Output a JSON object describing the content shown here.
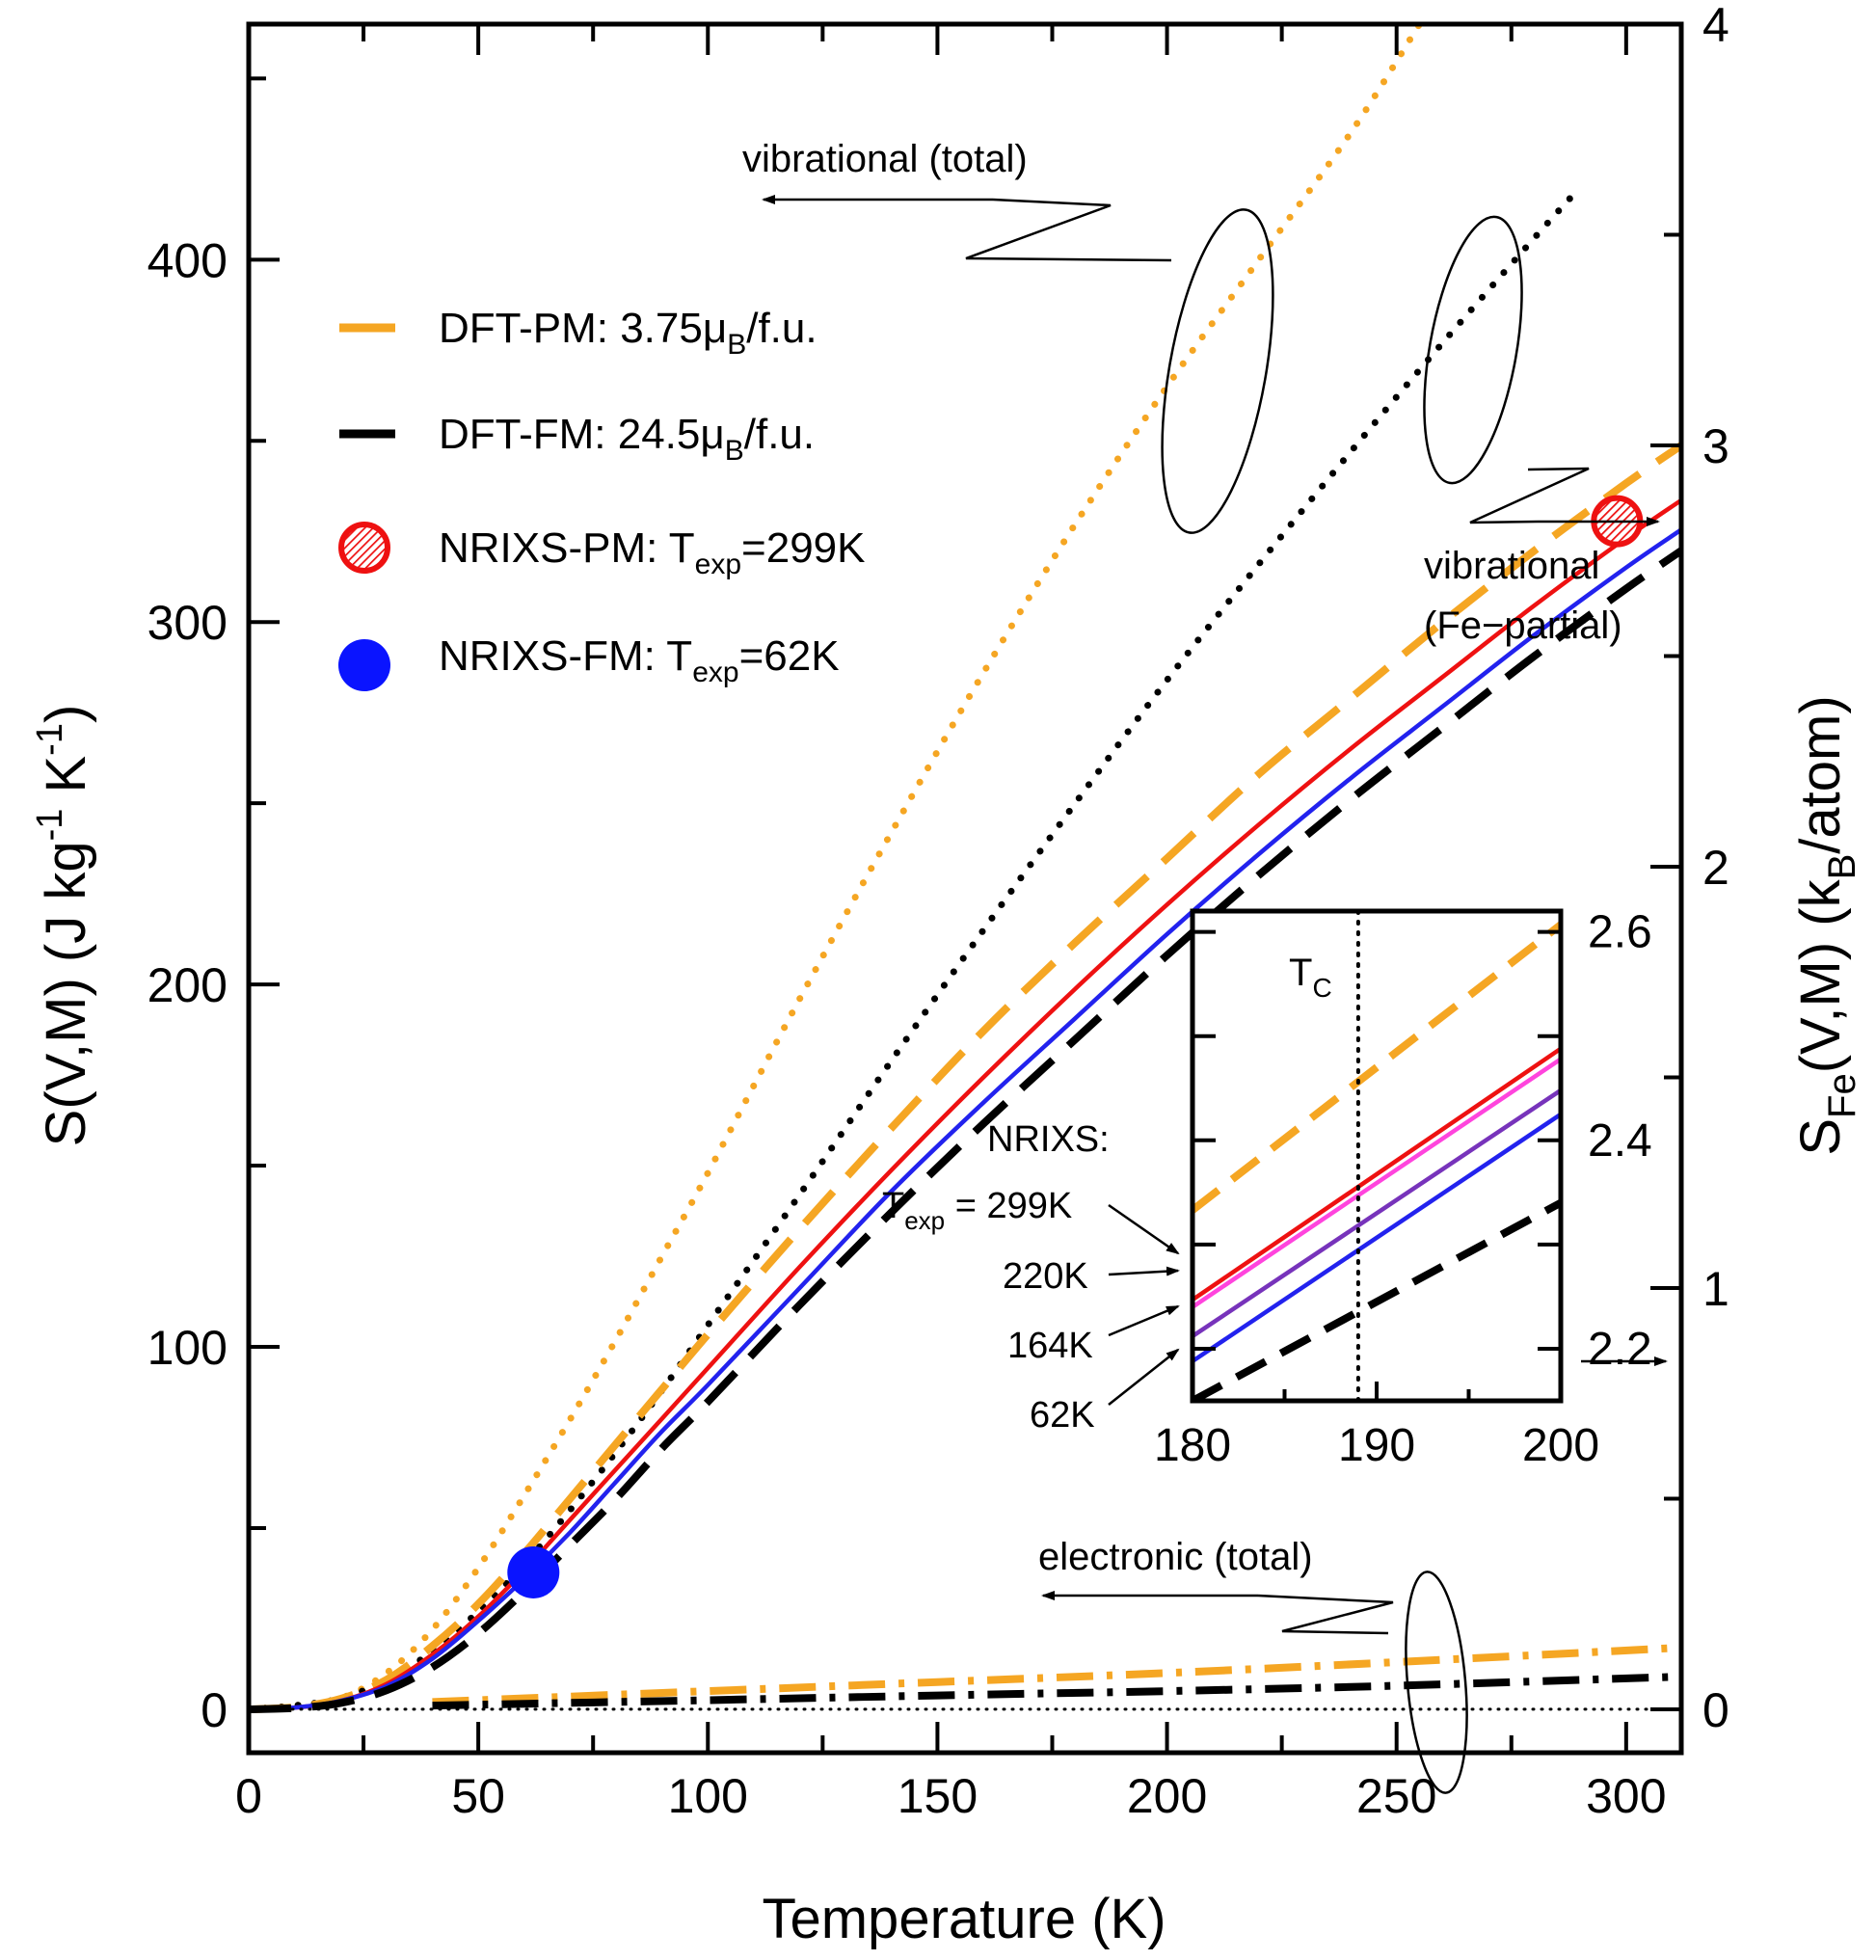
{
  "chart_data": {
    "type": "line",
    "main": {
      "xlabel": "Temperature  (K)",
      "ylabel_left": "S(V,M)  (J kg-1 K-1)",
      "ylabel_right": "S_Fe(V,M)  (k_B/atom)",
      "xlim": [
        0,
        312
      ],
      "ylim_left": [
        -12,
        465
      ],
      "ylim_right": [
        -0.103,
        4.0
      ],
      "x_ticks": [
        "0",
        "50",
        "100",
        "150",
        "200",
        "250",
        "300"
      ],
      "x_tick_values": [
        0,
        50,
        100,
        150,
        200,
        250,
        300
      ],
      "y_left_ticks": [
        "0",
        "100",
        "200",
        "300",
        "400"
      ],
      "y_left_tick_values": [
        0,
        100,
        200,
        300,
        400
      ],
      "y_right_ticks": [
        "0",
        "1",
        "2",
        "3",
        "4"
      ],
      "y_right_tick_values": [
        0,
        1,
        2,
        3,
        4
      ],
      "series": [
        {
          "name": "vibrational total DFT-PM",
          "style": "dotted",
          "color": "#f5a623",
          "axis": "left",
          "x": [
            0,
            10,
            20,
            30,
            40,
            50,
            60,
            70,
            80,
            90,
            100,
            120,
            140,
            160,
            180,
            200,
            220,
            240,
            255
          ],
          "y": [
            0,
            1,
            3,
            10,
            22,
            39,
            59,
            80,
            102,
            125,
            148,
            196,
            242,
            286,
            327,
            365,
            400,
            435,
            465
          ]
        },
        {
          "name": "vibrational total DFT-FM",
          "style": "dotted",
          "color": "#000000",
          "axis": "left",
          "x": [
            0,
            10,
            20,
            30,
            40,
            50,
            60,
            70,
            80,
            90,
            100,
            120,
            140,
            160,
            180,
            200,
            220,
            240,
            260,
            280,
            290
          ],
          "y": [
            0,
            1,
            3,
            8,
            16,
            27,
            40,
            55,
            71,
            88,
            106,
            142,
            179,
            215,
            250,
            284,
            316,
            347,
            377,
            406,
            420
          ]
        },
        {
          "name": "DFT-PM: 3.75μB/f.u.",
          "style": "dashed",
          "color": "#f5a623",
          "axis": "right",
          "x": [
            0,
            10,
            20,
            30,
            40,
            50,
            60,
            70,
            80,
            90,
            100,
            120,
            140,
            160,
            180,
            200,
            220,
            240,
            260,
            280,
            300,
            312
          ],
          "y": [
            0,
            0.005,
            0.025,
            0.07,
            0.15,
            0.25,
            0.37,
            0.5,
            0.63,
            0.76,
            0.89,
            1.14,
            1.38,
            1.61,
            1.82,
            2.02,
            2.22,
            2.4,
            2.58,
            2.75,
            2.91,
            3.0
          ]
        },
        {
          "name": "NRIXS-PM 299K",
          "style": "solid",
          "color": "#ee1111",
          "axis": "right",
          "x": [
            0,
            10,
            20,
            30,
            40,
            50,
            60,
            70,
            80,
            90,
            100,
            120,
            140,
            160,
            180,
            200,
            220,
            240,
            260,
            280,
            300,
            312
          ],
          "y": [
            0,
            0.004,
            0.02,
            0.06,
            0.13,
            0.22,
            0.33,
            0.45,
            0.57,
            0.69,
            0.81,
            1.05,
            1.28,
            1.5,
            1.71,
            1.91,
            2.1,
            2.28,
            2.45,
            2.62,
            2.78,
            2.87
          ]
        },
        {
          "name": "NRIXS-FM 62K",
          "style": "solid",
          "color": "#2222ee",
          "axis": "right",
          "x": [
            0,
            10,
            20,
            30,
            40,
            50,
            60,
            70,
            80,
            90,
            100,
            120,
            140,
            160,
            180,
            200,
            220,
            240,
            260,
            280,
            300,
            312
          ],
          "y": [
            0,
            0.004,
            0.02,
            0.055,
            0.12,
            0.21,
            0.31,
            0.42,
            0.54,
            0.66,
            0.77,
            1.0,
            1.23,
            1.44,
            1.64,
            1.84,
            2.03,
            2.21,
            2.38,
            2.55,
            2.71,
            2.8
          ]
        },
        {
          "name": "DFT-FM: 24.5μB/f.u.",
          "style": "dashed",
          "color": "#000000",
          "axis": "right",
          "x": [
            0,
            10,
            20,
            30,
            40,
            50,
            60,
            70,
            80,
            90,
            100,
            120,
            140,
            160,
            180,
            200,
            220,
            240,
            260,
            280,
            300,
            312
          ],
          "y": [
            0,
            0.003,
            0.015,
            0.045,
            0.1,
            0.18,
            0.28,
            0.39,
            0.5,
            0.62,
            0.73,
            0.96,
            1.18,
            1.39,
            1.59,
            1.79,
            1.98,
            2.16,
            2.33,
            2.5,
            2.66,
            2.75
          ]
        },
        {
          "name": "electronic total DFT-PM",
          "style": "dashdot",
          "color": "#f5a623",
          "axis": "left",
          "x": [
            40,
            100,
            150,
            200,
            250,
            312
          ],
          "y": [
            2,
            5,
            7.5,
            10,
            13,
            17
          ]
        },
        {
          "name": "electronic total DFT-FM",
          "style": "dashdot",
          "color": "#000000",
          "axis": "left",
          "x": [
            40,
            100,
            150,
            200,
            250,
            312
          ],
          "y": [
            1,
            2.5,
            3.8,
            5,
            6.5,
            9
          ]
        },
        {
          "name": "zero line",
          "style": "dotted-thin",
          "color": "#000000",
          "axis": "left",
          "x": [
            0,
            312
          ],
          "y": [
            0,
            0
          ]
        }
      ],
      "markers": [
        {
          "name": "NRIXS-PM: T_exp=299K",
          "x": 298,
          "y_right": 2.82,
          "color": "#ee1111",
          "hatched": true
        },
        {
          "name": "NRIXS-FM: T_exp=62K",
          "x": 62,
          "y_right": 0.325,
          "color": "#0a14ff",
          "hatched": false
        }
      ]
    },
    "inset": {
      "xlim": [
        180,
        200
      ],
      "ylim": [
        2.15,
        2.62
      ],
      "x_ticks": [
        "180",
        "190",
        "200"
      ],
      "x_tick_values": [
        180,
        190,
        200
      ],
      "y_ticks": [
        "2.2",
        "2.4",
        "2.6"
      ],
      "y_tick_values": [
        2.2,
        2.4,
        2.6
      ],
      "tc_value": 189,
      "series": [
        {
          "name": "DFT-PM",
          "style": "dashed",
          "color": "#f5a623",
          "x": [
            180,
            200
          ],
          "y": [
            2.333,
            2.607
          ]
        },
        {
          "name": "299K",
          "style": "solid",
          "color": "#ee1111",
          "x": [
            180,
            200
          ],
          "y": [
            2.247,
            2.488
          ]
        },
        {
          "name": "220K",
          "style": "solid",
          "color": "#ff44dd",
          "x": [
            180,
            200
          ],
          "y": [
            2.24,
            2.478
          ]
        },
        {
          "name": "164K",
          "style": "solid",
          "color": "#7733bb",
          "x": [
            180,
            200
          ],
          "y": [
            2.212,
            2.448
          ]
        },
        {
          "name": "62K",
          "style": "solid",
          "color": "#2222ee",
          "x": [
            180,
            200
          ],
          "y": [
            2.188,
            2.425
          ]
        },
        {
          "name": "DFT-FM",
          "style": "dashed",
          "color": "#000000",
          "x": [
            180,
            200
          ],
          "y": [
            2.15,
            2.34
          ]
        }
      ]
    }
  },
  "legend": {
    "items": [
      {
        "label_pre": "DFT-PM: 3.75",
        "sym": "μ",
        "sub": "B",
        "label_post": "/f.u.",
        "style": "dashed",
        "color": "#f5a623"
      },
      {
        "label_pre": "DFT-FM: 24.5",
        "sym": "μ",
        "sub": "B",
        "label_post": "/f.u.",
        "style": "dashed",
        "color": "#000000"
      },
      {
        "label_pre": "NRIXS-PM: T",
        "sym": "",
        "sub": "exp",
        "label_post": "=299K",
        "style": "marker",
        "color": "#ee1111"
      },
      {
        "label_pre": "NRIXS-FM: T",
        "sym": "",
        "sub": "exp",
        "label_post": "=62K",
        "style": "marker",
        "color": "#0a14ff"
      }
    ]
  },
  "annotations": {
    "vib_total": "vibrational (total)",
    "vib_partial_1": "vibrational",
    "vib_partial_2": "(Fe−partial)",
    "elec_total": "electronic (total)",
    "ylabel_left_pre": "S(V,M)  (J kg",
    "ylabel_left_sup1": "-1",
    "ylabel_left_mid": " K",
    "ylabel_left_sup2": "-1",
    "ylabel_left_post": ")",
    "ylabel_right_pre": "S",
    "ylabel_right_sub": "Fe",
    "ylabel_right_mid": "(V,M)  (k",
    "ylabel_right_sub2": "B",
    "ylabel_right_post": "/atom)",
    "tc_label": "T",
    "tc_sub": "C",
    "nrixs_head": "NRIXS:",
    "texp_pre": "T",
    "texp_sub": "exp",
    "texp_eq": " = 299K",
    "t220": "220K",
    "t164": "164K",
    "t62": "62K"
  },
  "colors": {
    "orange": "#f5a623",
    "red": "#ee1111",
    "blue": "#2222ee",
    "magenta": "#ff44dd",
    "purple": "#7733bb",
    "black": "#000000"
  }
}
